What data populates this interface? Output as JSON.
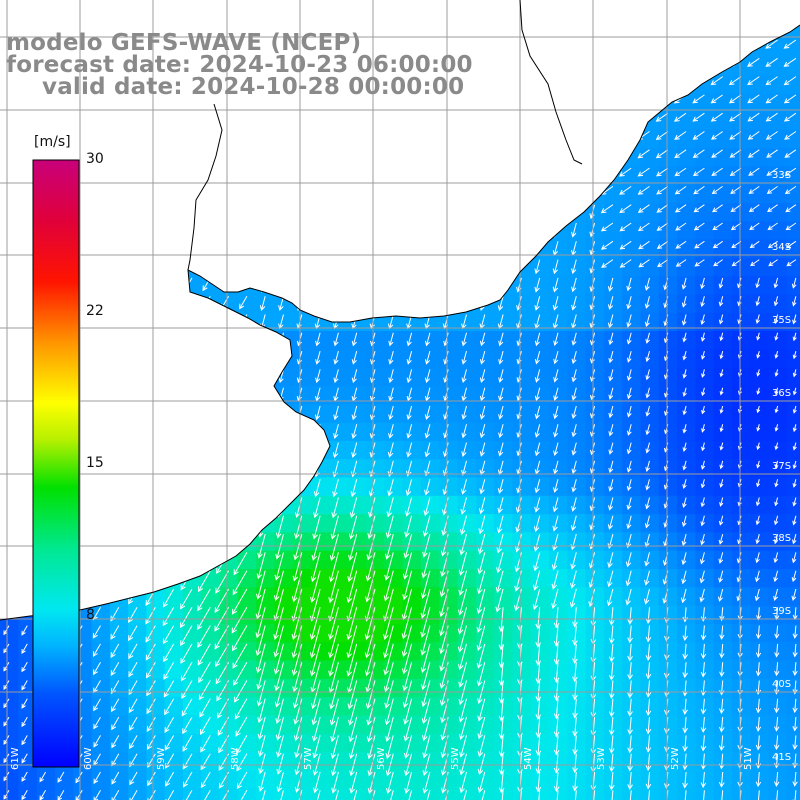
{
  "title": {
    "model": "modelo GEFS-WAVE (NCEP)",
    "forecast": "forecast date: 2024-10-23 06:00:00",
    "valid": "valid date: 2024-10-28 00:00:00"
  },
  "colorbar": {
    "unit": "[m/s]",
    "ticks": [
      "30",
      "22",
      "15",
      "8"
    ],
    "min": 0,
    "max": 30
  },
  "grid": {
    "lat_labels": [
      "33S",
      "34S",
      "35S",
      "36S",
      "37S",
      "38S",
      "39S",
      "40S",
      "41S"
    ],
    "lon_labels": [
      "61W",
      "60W",
      "59W",
      "58W",
      "57W",
      "56W",
      "55W",
      "54W",
      "53W",
      "52W",
      "51W"
    ]
  },
  "colors": {
    "land": "#ffffff",
    "coastline": "#000000",
    "gridlines": "#a0a0a0",
    "title_text": "#8a8a8a",
    "arrows": "#ffffff"
  },
  "field": {
    "variable": "wind speed",
    "units": "m/s",
    "approx_range": [
      3,
      13
    ],
    "arrow_direction": "mostly southward / south-southwest"
  }
}
